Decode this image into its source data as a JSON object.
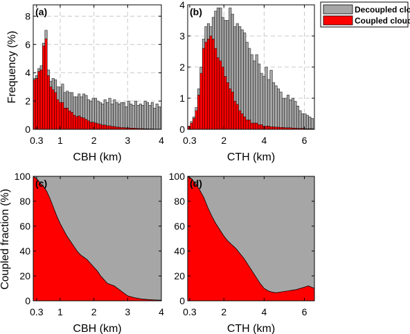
{
  "colors": {
    "decoupled": "#a6a6a6",
    "coupled": "#ff0000",
    "grid": "#c8c8c8",
    "axis": "#000000"
  },
  "ylabels": {
    "top": "Frequency (%)",
    "bottom": "Coupled fraction (%)"
  },
  "legend": {
    "position": "top-right",
    "decoupled": "Decoupled cloud",
    "coupled": "Coupled cloud"
  },
  "chart_data": [
    {
      "panel": "(a)",
      "type": "bar",
      "xlabel": "CBH (km)",
      "ylabel": "Frequency (%)",
      "xlim": [
        0.2,
        4.0
      ],
      "ylim": [
        0,
        8.8
      ],
      "grid": true,
      "xticks": [
        {
          "v": 0.3,
          "label": "0.3"
        },
        {
          "v": 1,
          "label": "1"
        },
        {
          "v": 2,
          "label": "2"
        },
        {
          "v": 3,
          "label": "3"
        },
        {
          "v": 4,
          "label": "4"
        }
      ],
      "yticks": [
        {
          "v": 0,
          "label": "0"
        },
        {
          "v": 2,
          "label": "2"
        },
        {
          "v": 4,
          "label": "4"
        },
        {
          "v": 6,
          "label": "6"
        },
        {
          "v": 8,
          "label": "8"
        }
      ],
      "x": [
        0.23,
        0.3,
        0.37,
        0.44,
        0.51,
        0.58,
        0.65,
        0.72,
        0.79,
        0.86,
        0.93,
        1.0,
        1.07,
        1.14,
        1.21,
        1.28,
        1.35,
        1.42,
        1.49,
        1.56,
        1.63,
        1.7,
        1.77,
        1.84,
        1.91,
        1.98,
        2.05,
        2.12,
        2.19,
        2.26,
        2.33,
        2.4,
        2.47,
        2.54,
        2.61,
        2.68,
        2.75,
        2.82,
        2.89,
        2.96,
        3.03,
        3.1,
        3.17,
        3.24,
        3.31,
        3.38,
        3.45,
        3.52,
        3.59,
        3.66,
        3.73,
        3.8,
        3.87,
        3.94
      ],
      "series": [
        {
          "name": "Decoupled cloud",
          "values": [
            3.6,
            3.8,
            4.3,
            4.5,
            6.1,
            7.0,
            4.2,
            3.4,
            3.6,
            3.5,
            3.0,
            3.0,
            3.2,
            2.6,
            2.7,
            2.6,
            2.6,
            2.3,
            2.3,
            2.5,
            2.3,
            2.5,
            2.4,
            2.1,
            2.0,
            2.2,
            2.2,
            2.0,
            1.9,
            1.8,
            2.1,
            1.9,
            2.2,
            1.8,
            2.1,
            1.9,
            1.8,
            1.9,
            1.9,
            1.6,
            2.0,
            1.8,
            1.7,
            2.0,
            1.7,
            1.8,
            1.7,
            2.0,
            1.9,
            1.7,
            1.9,
            1.5,
            1.8,
            1.6
          ]
        },
        {
          "name": "Coupled cloud",
          "values": [
            3.5,
            3.6,
            4.1,
            4.2,
            5.9,
            6.4,
            3.8,
            3.0,
            2.8,
            2.6,
            2.1,
            1.9,
            1.9,
            1.5,
            1.5,
            1.3,
            1.2,
            1.0,
            0.9,
            0.95,
            0.85,
            0.8,
            0.7,
            0.6,
            0.5,
            0.5,
            0.45,
            0.4,
            0.35,
            0.3,
            0.3,
            0.25,
            0.25,
            0.2,
            0.2,
            0.15,
            0.15,
            0.12,
            0.12,
            0.1,
            0.1,
            0.08,
            0.08,
            0.07,
            0.06,
            0.05,
            0.05,
            0.04,
            0.04,
            0.03,
            0.03,
            0.02,
            0.02,
            0.02
          ]
        }
      ]
    },
    {
      "panel": "(b)",
      "type": "bar",
      "xlabel": "CTH (km)",
      "ylabel": "",
      "xlim": [
        0.2,
        6.5
      ],
      "ylim": [
        0,
        4.0
      ],
      "grid": true,
      "xticks": [
        {
          "v": 0.3,
          "label": "0.3"
        },
        {
          "v": 2,
          "label": "2"
        },
        {
          "v": 4,
          "label": "4"
        },
        {
          "v": 6,
          "label": "6"
        }
      ],
      "yticks": [
        {
          "v": 0,
          "label": "0"
        },
        {
          "v": 1,
          "label": "1"
        },
        {
          "v": 2,
          "label": "2"
        },
        {
          "v": 3,
          "label": "3"
        },
        {
          "v": 4,
          "label": "4"
        }
      ],
      "x": [
        0.27,
        0.39,
        0.51,
        0.63,
        0.75,
        0.87,
        0.99,
        1.11,
        1.23,
        1.35,
        1.47,
        1.59,
        1.71,
        1.83,
        1.95,
        2.07,
        2.19,
        2.31,
        2.43,
        2.55,
        2.67,
        2.79,
        2.91,
        3.03,
        3.15,
        3.27,
        3.39,
        3.51,
        3.63,
        3.75,
        3.87,
        3.99,
        4.11,
        4.23,
        4.35,
        4.47,
        4.59,
        4.71,
        4.83,
        4.95,
        5.07,
        5.19,
        5.31,
        5.43,
        5.55,
        5.67,
        5.79,
        5.91,
        6.03,
        6.15,
        6.27,
        6.39
      ],
      "series": [
        {
          "name": "Decoupled cloud",
          "values": [
            0.1,
            0.25,
            0.4,
            0.7,
            1.3,
            2.0,
            2.9,
            3.3,
            3.4,
            3.3,
            3.6,
            3.8,
            3.9,
            3.9,
            3.6,
            3.5,
            3.5,
            3.9,
            3.7,
            3.3,
            3.4,
            3.3,
            3.2,
            3.1,
            2.8,
            2.6,
            2.4,
            2.2,
            2.4,
            2.1,
            1.8,
            1.7,
            2.0,
            1.6,
            1.9,
            1.5,
            1.4,
            1.3,
            1.2,
            1.0,
            1.0,
            1.1,
            0.95,
            1.0,
            0.9,
            0.75,
            0.6,
            0.5,
            0.5,
            0.45,
            0.4,
            0.35
          ]
        },
        {
          "name": "Coupled cloud",
          "values": [
            0.1,
            0.2,
            0.35,
            0.6,
            1.1,
            1.8,
            2.6,
            2.8,
            2.9,
            3.0,
            2.9,
            2.6,
            2.3,
            2.2,
            2.0,
            1.7,
            1.5,
            1.3,
            1.2,
            0.9,
            0.8,
            0.6,
            0.5,
            0.4,
            0.3,
            0.3,
            0.2,
            0.2,
            0.2,
            0.15,
            0.15,
            0.1,
            0.1,
            0.1,
            0.08,
            0.08,
            0.07,
            0.07,
            0.06,
            0.06,
            0.05,
            0.05,
            0.05,
            0.04,
            0.04,
            0.03,
            0.03,
            0.03,
            0.02,
            0.02,
            0.02,
            0.02
          ]
        }
      ]
    },
    {
      "panel": "(c)",
      "type": "area",
      "xlabel": "CBH (km)",
      "ylabel": "Coupled fraction (%)",
      "xlim": [
        0.2,
        4.0
      ],
      "ylim": [
        0,
        100
      ],
      "grid": false,
      "xticks": [
        {
          "v": 0.3,
          "label": "0.3"
        },
        {
          "v": 1,
          "label": "1"
        },
        {
          "v": 2,
          "label": "2"
        },
        {
          "v": 3,
          "label": "3"
        },
        {
          "v": 4,
          "label": "4"
        }
      ],
      "yticks": [
        {
          "v": 0,
          "label": "0"
        },
        {
          "v": 20,
          "label": "20"
        },
        {
          "v": 40,
          "label": "40"
        },
        {
          "v": 60,
          "label": "60"
        },
        {
          "v": 80,
          "label": "80"
        },
        {
          "v": 100,
          "label": "100"
        }
      ],
      "x": [
        0.2,
        0.3,
        0.4,
        0.5,
        0.6,
        0.7,
        0.8,
        0.9,
        1.0,
        1.1,
        1.2,
        1.3,
        1.4,
        1.5,
        1.6,
        1.7,
        1.8,
        1.9,
        2.0,
        2.1,
        2.2,
        2.3,
        2.4,
        2.5,
        2.6,
        2.7,
        2.8,
        2.9,
        3.0,
        3.2,
        3.4,
        3.6,
        3.8,
        4.0
      ],
      "series": [
        {
          "name": "Coupled cloud",
          "values": [
            100,
            98,
            95,
            92,
            88,
            82,
            75,
            68,
            62,
            57,
            52,
            48,
            44,
            40,
            37,
            35,
            33,
            30,
            27,
            24,
            20,
            17,
            14,
            13,
            12,
            10,
            8,
            6,
            4,
            2.5,
            1.5,
            1,
            0.7,
            0.5
          ]
        }
      ]
    },
    {
      "panel": "(d)",
      "type": "area",
      "xlabel": "CTH (km)",
      "ylabel": "",
      "xlim": [
        0.2,
        6.5
      ],
      "ylim": [
        0,
        100
      ],
      "grid": false,
      "xticks": [
        {
          "v": 0.3,
          "label": "0.3"
        },
        {
          "v": 2,
          "label": "2"
        },
        {
          "v": 4,
          "label": "4"
        },
        {
          "v": 6,
          "label": "6"
        }
      ],
      "yticks": [
        {
          "v": 0,
          "label": "0"
        },
        {
          "v": 20,
          "label": "20"
        },
        {
          "v": 40,
          "label": "40"
        },
        {
          "v": 60,
          "label": "60"
        },
        {
          "v": 80,
          "label": "80"
        },
        {
          "v": 100,
          "label": "100"
        }
      ],
      "x": [
        0.2,
        0.4,
        0.6,
        0.8,
        1.0,
        1.2,
        1.4,
        1.6,
        1.8,
        2.0,
        2.2,
        2.4,
        2.6,
        2.8,
        3.0,
        3.2,
        3.4,
        3.6,
        3.8,
        4.0,
        4.2,
        4.4,
        4.6,
        4.8,
        5.0,
        5.2,
        5.4,
        5.6,
        5.8,
        6.0,
        6.2,
        6.5
      ],
      "series": [
        {
          "name": "Coupled cloud",
          "values": [
            100,
            98,
            94,
            89,
            83,
            75,
            68,
            62,
            57,
            52,
            48,
            45,
            42,
            38,
            34,
            29,
            24,
            19,
            14,
            10,
            8,
            7,
            6.5,
            7,
            7.5,
            8,
            8.5,
            9,
            10,
            11,
            12,
            10
          ]
        }
      ]
    }
  ]
}
